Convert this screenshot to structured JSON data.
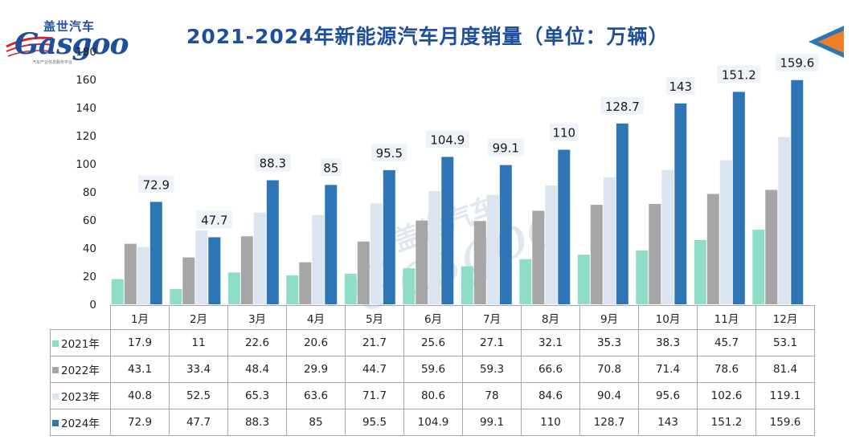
{
  "header": {
    "title": "2021-2024年新能源汽车月度销量（单位：万辆）",
    "logo_cn": "盖世汽车",
    "logo_en": "Gasgoo",
    "logo_tagline": "汽车产业信息服务平台"
  },
  "colors": {
    "s2021": "#8fdcc9",
    "s2022": "#a6a6a6",
    "s2023": "#dbe4f1",
    "s2024": "#2e75b6",
    "title": "#1f4f9c",
    "arrow_orange": "#f07f2a",
    "arrow_blue": "#2e75b6"
  },
  "icons": {
    "corner": "triangle-arrow-icon",
    "logo": "gasgoo-logo-icon"
  },
  "chart_data": {
    "type": "bar",
    "title": "2021-2024年新能源汽车月度销量（单位：万辆）",
    "categories": [
      "1月",
      "2月",
      "3月",
      "4月",
      "5月",
      "6月",
      "7月",
      "8月",
      "9月",
      "10月",
      "11月",
      "12月"
    ],
    "series": [
      {
        "name": "2021年",
        "color": "#8fdcc9",
        "values": [
          17.9,
          11,
          22.6,
          20.6,
          21.7,
          25.6,
          27.1,
          32.1,
          35.3,
          38.3,
          45.7,
          53.1
        ]
      },
      {
        "name": "2022年",
        "color": "#a6a6a6",
        "values": [
          43.1,
          33.4,
          48.4,
          29.9,
          44.7,
          59.6,
          59.3,
          66.6,
          70.8,
          71.4,
          78.6,
          81.4
        ]
      },
      {
        "name": "2023年",
        "color": "#dbe4f1",
        "values": [
          40.8,
          52.5,
          65.3,
          63.6,
          71.7,
          80.6,
          78,
          84.6,
          90.4,
          95.6,
          102.6,
          119.1
        ]
      },
      {
        "name": "2024年",
        "color": "#2e75b6",
        "values": [
          72.9,
          47.7,
          88.3,
          85,
          95.5,
          104.9,
          99.1,
          110,
          128.7,
          143,
          151.2,
          159.6
        ]
      }
    ],
    "data_labels": [
      "72.9",
      "47.7",
      "88.3",
      "85",
      "95.5",
      "104.9",
      "99.1",
      "110",
      "128.7",
      "143",
      "151.2",
      "159.6"
    ],
    "yticks": [
      "0",
      "20",
      "40",
      "60",
      "80",
      "100",
      "120",
      "140",
      "160",
      "180"
    ],
    "ylim": [
      0,
      180
    ],
    "grid": false,
    "legend": "table-below"
  },
  "table": {
    "rows": [
      {
        "label": "2021年",
        "cells": [
          "17.9",
          "11",
          "22.6",
          "20.6",
          "21.7",
          "25.6",
          "27.1",
          "32.1",
          "35.3",
          "38.3",
          "45.7",
          "53.1"
        ]
      },
      {
        "label": "2022年",
        "cells": [
          "43.1",
          "33.4",
          "48.4",
          "29.9",
          "44.7",
          "59.6",
          "59.3",
          "66.6",
          "70.8",
          "71.4",
          "78.6",
          "81.4"
        ]
      },
      {
        "label": "2023年",
        "cells": [
          "40.8",
          "52.5",
          "65.3",
          "63.6",
          "71.7",
          "80.6",
          "78",
          "84.6",
          "90.4",
          "95.6",
          "102.6",
          "119.1"
        ]
      },
      {
        "label": "2024年",
        "cells": [
          "72.9",
          "47.7",
          "88.3",
          "85",
          "95.5",
          "104.9",
          "99.1",
          "110",
          "128.7",
          "143",
          "151.2",
          "159.6"
        ]
      }
    ]
  }
}
